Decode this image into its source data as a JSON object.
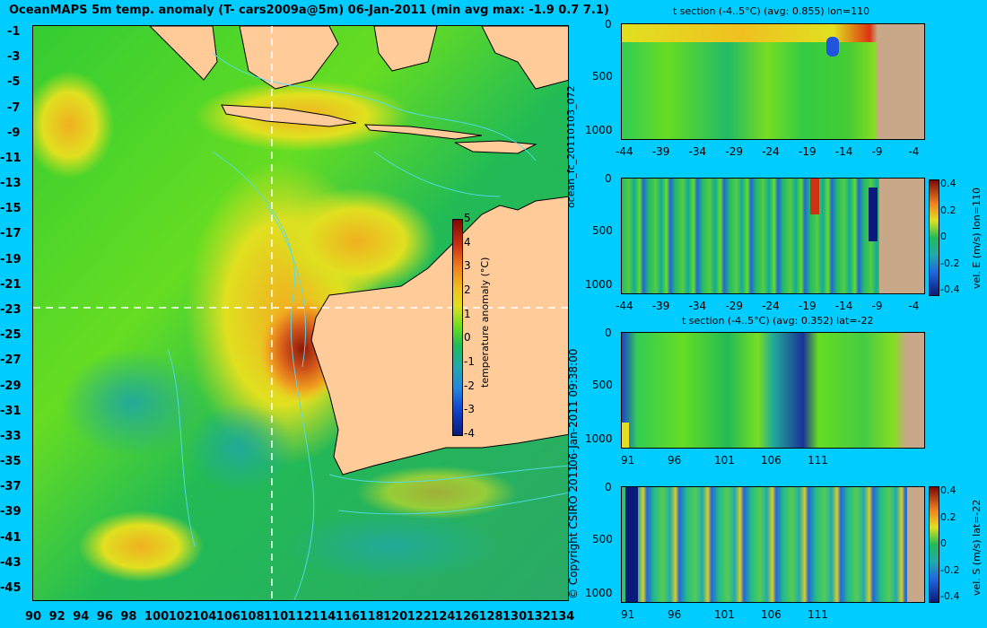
{
  "map": {
    "title": "OceanMAPS 5m temp. anomaly (T- cars2009a@5m) 06-Jan-2011 (min avg max: -1.9 0.7 7.1)",
    "lat_ticks": [
      "-1",
      "-3",
      "-5",
      "-7",
      "-9",
      "-11",
      "-13",
      "-15",
      "-17",
      "-19",
      "-21",
      "-23",
      "-25",
      "-27",
      "-29",
      "-31",
      "-33",
      "-35",
      "-37",
      "-39",
      "-41",
      "-43",
      "-45"
    ],
    "lon_ticks": [
      "90",
      "92",
      "94",
      "96",
      "98",
      "100",
      "102",
      "104",
      "106",
      "108",
      "110",
      "112",
      "114",
      "116",
      "118",
      "120",
      "122",
      "124",
      "126",
      "128",
      "130",
      "132",
      "134"
    ],
    "colorbar_ticks": [
      "5",
      "4",
      "3",
      "2",
      "1",
      "0",
      "-1",
      "-2",
      "-3",
      "-4"
    ],
    "colorbar_label": "temperature anomaly (°C)"
  },
  "side_text": {
    "run_id": "ocean_fc_20110103_072",
    "timestamp": "06-Jan-2011 09:38:00",
    "copyright": "© Copyright CSIRO 2011"
  },
  "panels": [
    {
      "title": "t section (-4..5°C) (avg: 0.855) lon=110",
      "y_ticks": [
        "0",
        "500",
        "1000"
      ],
      "x_ticks": [
        "-44",
        "-39",
        "-34",
        "-29",
        "-24",
        "-19",
        "-14",
        "-9",
        "-4"
      ]
    },
    {
      "title": "",
      "y_ticks": [
        "0",
        "500",
        "1000"
      ],
      "x_ticks": [
        "-44",
        "-39",
        "-34",
        "-29",
        "-24",
        "-19",
        "-14",
        "-9",
        "-4"
      ],
      "colorbar_ticks": [
        "0.4",
        "0.2",
        "0",
        "-0.2",
        "-0.4"
      ],
      "colorbar_label": "vel. E (m/s) lon=110"
    },
    {
      "title": "t section (-4..5°C) (avg: 0.352) lat=-22",
      "y_ticks": [
        "0",
        "500",
        "1000"
      ],
      "x_ticks": [
        "91",
        "96",
        "101",
        "106",
        "111"
      ]
    },
    {
      "title": "",
      "y_ticks": [
        "0",
        "500",
        "1000"
      ],
      "x_ticks": [
        "91",
        "96",
        "101",
        "106",
        "111"
      ],
      "colorbar_ticks": [
        "0.4",
        "0.2",
        "0",
        "-0.2",
        "-0.4"
      ],
      "colorbar_label": "vel. S (m/s) lat=-22"
    }
  ],
  "colors": {
    "background": "#00ccff",
    "land": "#ffcc99",
    "ocean_green": "#22bb44",
    "section_land": "#c8a888"
  }
}
